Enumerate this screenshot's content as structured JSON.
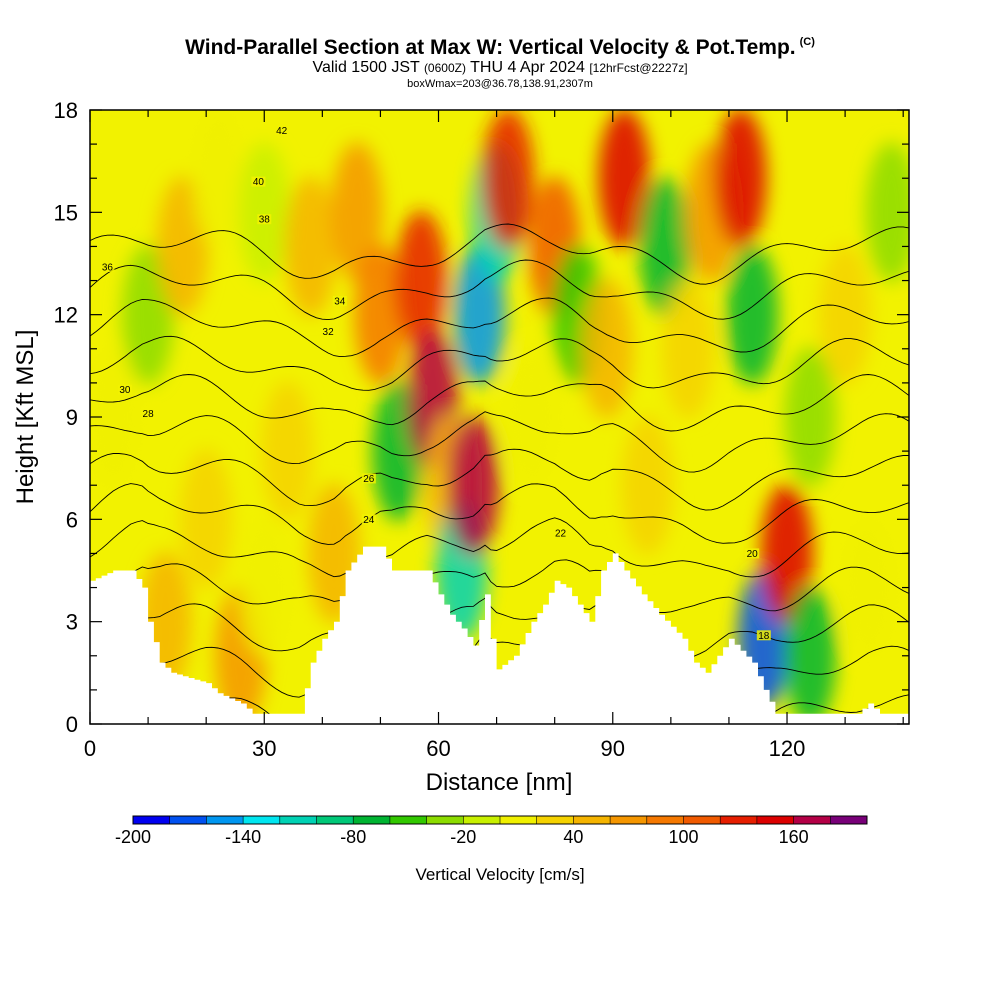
{
  "header": {
    "title": "Wind-Parallel Section at Max W: Vertical Velocity & Pot.Temp.",
    "copyright": "(C)",
    "valid_prefix": "Valid 1500 JST",
    "valid_utc": "(0600Z)",
    "valid_date": "THU 4 Apr 2024",
    "forecast": "[12hrFcst@2227z]",
    "box_info": "boxWmax=203@36.78,138.91,2307m"
  },
  "colors": {
    "plot_background": "#f2f200",
    "terrain": "#ffffff",
    "contour": "#000000"
  },
  "chart_data": {
    "type": "heatmap",
    "xlabel": "Distance [nm]",
    "ylabel": "Height [Kft MSL]",
    "xlim": [
      0,
      141
    ],
    "ylim": [
      0,
      18
    ],
    "x_ticks": [
      "0",
      "30",
      "60",
      "90",
      "120"
    ],
    "y_ticks": [
      "0",
      "3",
      "6",
      "9",
      "12",
      "15",
      "18"
    ],
    "grid": false,
    "colorbar": {
      "title": "Vertical Velocity [cm/s]",
      "tick_labels": [
        "-200",
        "-140",
        "-80",
        "-20",
        "40",
        "100",
        "160"
      ],
      "levels": [
        -200,
        -180,
        -160,
        -140,
        -120,
        -100,
        -80,
        -60,
        -40,
        -20,
        0,
        20,
        40,
        60,
        80,
        100,
        120,
        140,
        160,
        180,
        200
      ],
      "colors": [
        "#0000f0",
        "#0050f0",
        "#0096f0",
        "#00e6f0",
        "#00d2b4",
        "#00c878",
        "#00b432",
        "#32c800",
        "#8cdc00",
        "#c8f000",
        "#f0f000",
        "#f5d200",
        "#f5b400",
        "#f59600",
        "#f57800",
        "#f05a00",
        "#e61e00",
        "#dc0000",
        "#b40046",
        "#780078"
      ]
    },
    "velocity_cells": [
      {
        "x": 4,
        "h": 9,
        "w": 0
      },
      {
        "x": 10,
        "h": 12,
        "w": -30
      },
      {
        "x": 13,
        "h": 3,
        "w": 40
      },
      {
        "x": 16,
        "h": 14,
        "w": 40
      },
      {
        "x": 20,
        "h": 6,
        "w": 20
      },
      {
        "x": 22,
        "h": 16,
        "w": 10
      },
      {
        "x": 26,
        "h": 2,
        "w": 60
      },
      {
        "x": 30,
        "h": 4,
        "w": 0
      },
      {
        "x": 30,
        "h": 15,
        "w": -20
      },
      {
        "x": 34,
        "h": 8,
        "w": 20
      },
      {
        "x": 38,
        "h": 14,
        "w": 40
      },
      {
        "x": 42,
        "h": 5,
        "w": 40
      },
      {
        "x": 46,
        "h": 15,
        "w": 60
      },
      {
        "x": 50,
        "h": 12,
        "w": 90
      },
      {
        "x": 53,
        "h": 8,
        "w": -80
      },
      {
        "x": 57,
        "h": 13,
        "w": 120
      },
      {
        "x": 59,
        "h": 9.5,
        "w": 170
      },
      {
        "x": 62,
        "h": 7,
        "w": 50
      },
      {
        "x": 64,
        "h": 4.5,
        "w": -120
      },
      {
        "x": 66,
        "h": 7,
        "w": 160
      },
      {
        "x": 67,
        "h": 12,
        "w": -160
      },
      {
        "x": 70,
        "h": 15,
        "w": -120
      },
      {
        "x": 72,
        "h": 16,
        "w": 130
      },
      {
        "x": 76,
        "h": 9,
        "w": 10
      },
      {
        "x": 80,
        "h": 14,
        "w": 100
      },
      {
        "x": 84,
        "h": 12,
        "w": -60
      },
      {
        "x": 89,
        "h": 11,
        "w": 40
      },
      {
        "x": 92,
        "h": 16,
        "w": 140
      },
      {
        "x": 96,
        "h": 7,
        "w": 30
      },
      {
        "x": 99,
        "h": 14,
        "w": -70
      },
      {
        "x": 103,
        "h": 11,
        "w": 30
      },
      {
        "x": 107,
        "h": 15,
        "w": 60
      },
      {
        "x": 112,
        "h": 16,
        "w": 150
      },
      {
        "x": 114,
        "h": 12,
        "w": -80
      },
      {
        "x": 116,
        "h": 2.5,
        "w": -170
      },
      {
        "x": 120,
        "h": 5,
        "w": 140
      },
      {
        "x": 124,
        "h": 2,
        "w": -70
      },
      {
        "x": 124,
        "h": 9,
        "w": -40
      },
      {
        "x": 130,
        "h": 12,
        "w": 20
      },
      {
        "x": 134,
        "h": 4,
        "w": 10
      },
      {
        "x": 138,
        "h": 15,
        "w": -30
      }
    ],
    "terrain_height": [
      {
        "x": 0,
        "h": 4.2
      },
      {
        "x": 4,
        "h": 4.5
      },
      {
        "x": 7,
        "h": 4.5
      },
      {
        "x": 9,
        "h": 4.0
      },
      {
        "x": 10,
        "h": 3.0
      },
      {
        "x": 12,
        "h": 1.8
      },
      {
        "x": 14,
        "h": 1.5
      },
      {
        "x": 20,
        "h": 1.2
      },
      {
        "x": 22,
        "h": 0.9
      },
      {
        "x": 26,
        "h": 0.6
      },
      {
        "x": 28,
        "h": 0.3
      },
      {
        "x": 36,
        "h": 0.3
      },
      {
        "x": 38,
        "h": 1.8
      },
      {
        "x": 40,
        "h": 2.5
      },
      {
        "x": 42,
        "h": 3.0
      },
      {
        "x": 44,
        "h": 4.5
      },
      {
        "x": 47,
        "h": 5.2
      },
      {
        "x": 50,
        "h": 5.2
      },
      {
        "x": 52,
        "h": 4.5
      },
      {
        "x": 58,
        "h": 4.5
      },
      {
        "x": 60,
        "h": 3.8
      },
      {
        "x": 62,
        "h": 3.2
      },
      {
        "x": 64,
        "h": 2.8
      },
      {
        "x": 66,
        "h": 2.3
      },
      {
        "x": 68,
        "h": 3.8
      },
      {
        "x": 69,
        "h": 2.5
      },
      {
        "x": 70,
        "h": 1.6
      },
      {
        "x": 73,
        "h": 2.0
      },
      {
        "x": 76,
        "h": 3.0
      },
      {
        "x": 78,
        "h": 3.5
      },
      {
        "x": 80,
        "h": 4.2
      },
      {
        "x": 82,
        "h": 4.0
      },
      {
        "x": 84,
        "h": 3.5
      },
      {
        "x": 86,
        "h": 3.0
      },
      {
        "x": 88,
        "h": 4.5
      },
      {
        "x": 90,
        "h": 5.0
      },
      {
        "x": 92,
        "h": 4.5
      },
      {
        "x": 95,
        "h": 3.8
      },
      {
        "x": 98,
        "h": 3.2
      },
      {
        "x": 102,
        "h": 2.5
      },
      {
        "x": 104,
        "h": 1.8
      },
      {
        "x": 106,
        "h": 1.5
      },
      {
        "x": 110,
        "h": 2.5
      },
      {
        "x": 114,
        "h": 1.8
      },
      {
        "x": 116,
        "h": 1.0
      },
      {
        "x": 118,
        "h": 0.3
      },
      {
        "x": 132,
        "h": 0.3
      },
      {
        "x": 134,
        "h": 0.6
      },
      {
        "x": 136,
        "h": 0.3
      },
      {
        "x": 141,
        "h": 0.3
      }
    ],
    "theta_contours": [
      {
        "label": "18",
        "base": 0.5,
        "label_x": 116,
        "label_h": 2.6
      },
      {
        "label": "20",
        "base": 1.7,
        "label_x": 114,
        "label_h": 5.0
      },
      {
        "label": "22",
        "base": 2.8,
        "label_x": 81,
        "label_h": 5.6
      },
      {
        "label": "24",
        "base": 3.9,
        "label_x": 48,
        "label_h": 6.0
      },
      {
        "label": "26",
        "base": 5.0,
        "label_x": 48,
        "label_h": 7.2
      },
      {
        "label": "28",
        "base": 6.1,
        "label_x": 10,
        "label_h": 9.1
      },
      {
        "label": "30",
        "base": 7.2,
        "label_x": 6,
        "label_h": 9.8
      },
      {
        "label": "32",
        "base": 8.3,
        "label_x": 41,
        "label_h": 11.5
      },
      {
        "label": "34",
        "base": 9.4,
        "label_x": 43,
        "label_h": 12.4
      },
      {
        "label": "36",
        "base": 10.5,
        "label_x": 3,
        "label_h": 13.4
      },
      {
        "label": "38",
        "base": 11.6,
        "label_x": 30,
        "label_h": 14.8
      },
      {
        "label": "40",
        "base": 12.7,
        "label_x": 29,
        "label_h": 15.9
      },
      {
        "label": "42",
        "base": 13.8,
        "label_x": 33,
        "label_h": 17.4
      }
    ]
  }
}
